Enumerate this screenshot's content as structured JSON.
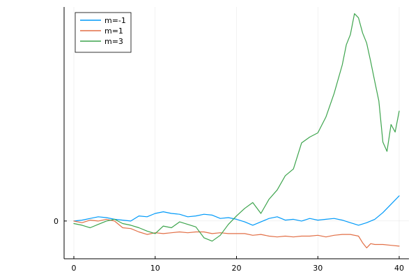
{
  "chart_data": {
    "type": "line",
    "title": "",
    "xlabel": "",
    "ylabel": "",
    "xlim": [
      -1.2,
      41.2
    ],
    "ylim": [
      -4.5,
      25.5
    ],
    "xticks": [
      0,
      10,
      20,
      30,
      40
    ],
    "xtick_labels": [
      "0",
      "10",
      "20",
      "30",
      "40"
    ],
    "yticks": [
      0
    ],
    "ytick_labels": [
      "0"
    ],
    "grid": true,
    "legend_position": "top-left",
    "series": [
      {
        "name": "m=-1",
        "color": "#009AF9",
        "x": [
          0,
          1,
          2,
          3,
          4,
          5,
          6,
          7,
          8,
          9,
          10,
          11,
          12,
          13,
          14,
          15,
          16,
          17,
          18,
          19,
          20,
          21,
          22,
          23,
          24,
          25,
          26,
          27,
          28,
          29,
          30,
          31,
          32,
          33,
          34,
          35,
          36,
          37,
          38,
          39,
          40
        ],
        "y": [
          0.0,
          0.1,
          0.3,
          0.5,
          0.4,
          0.2,
          0.1,
          0.0,
          0.6,
          0.5,
          0.9,
          1.1,
          0.9,
          0.8,
          0.5,
          0.6,
          0.8,
          0.7,
          0.3,
          0.4,
          0.2,
          -0.1,
          -0.5,
          -0.1,
          0.3,
          0.5,
          0.1,
          0.2,
          0.0,
          0.3,
          0.1,
          0.2,
          0.3,
          0.1,
          -0.2,
          -0.5,
          -0.2,
          0.2,
          1.0,
          2.0,
          3.0
        ]
      },
      {
        "name": "m=1",
        "color": "#E26F46",
        "x": [
          0,
          1,
          2,
          3,
          4,
          5,
          6,
          7,
          8,
          9,
          10,
          11,
          12,
          13,
          14,
          15,
          16,
          17,
          18,
          19,
          20,
          21,
          22,
          23,
          24,
          25,
          26,
          27,
          28,
          29,
          30,
          31,
          32,
          33,
          34,
          35,
          35.5,
          36,
          36.5,
          37,
          38,
          39,
          40
        ],
        "y": [
          0.0,
          -0.2,
          0.1,
          0.0,
          0.2,
          0.0,
          -0.8,
          -0.9,
          -1.3,
          -1.6,
          -1.4,
          -1.5,
          -1.4,
          -1.3,
          -1.4,
          -1.3,
          -1.3,
          -1.5,
          -1.4,
          -1.5,
          -1.5,
          -1.5,
          -1.7,
          -1.6,
          -1.8,
          -1.9,
          -1.8,
          -1.9,
          -1.8,
          -1.8,
          -1.7,
          -1.9,
          -1.7,
          -1.6,
          -1.6,
          -1.8,
          -2.6,
          -3.2,
          -2.7,
          -2.8,
          -2.8,
          -2.9,
          -3.0
        ]
      },
      {
        "name": "m=3",
        "color": "#3DA44D",
        "x": [
          0,
          1,
          2,
          3,
          4,
          5,
          6,
          7,
          8,
          9,
          10,
          11,
          12,
          13,
          14,
          15,
          16,
          17,
          18,
          19,
          20,
          21,
          22,
          23,
          24,
          25,
          26,
          27,
          28,
          29,
          30,
          31,
          32,
          33,
          33.5,
          34,
          34.5,
          35,
          35.5,
          36,
          36.5,
          37,
          37.5,
          38,
          38.5,
          39,
          39.5,
          40
        ],
        "y": [
          -0.3,
          -0.5,
          -0.8,
          -0.4,
          0.0,
          0.2,
          -0.3,
          -0.5,
          -0.8,
          -1.2,
          -1.5,
          -0.6,
          -0.8,
          -0.1,
          -0.4,
          -0.7,
          -2.0,
          -2.4,
          -1.7,
          -0.4,
          0.6,
          1.5,
          2.2,
          0.9,
          2.6,
          3.7,
          5.4,
          6.2,
          9.3,
          10.0,
          10.5,
          12.4,
          15.2,
          18.6,
          21.0,
          22.2,
          24.7,
          24.2,
          22.4,
          21.2,
          19.0,
          16.6,
          14.3,
          9.4,
          8.3,
          11.5,
          10.6,
          13.1
        ]
      }
    ]
  }
}
